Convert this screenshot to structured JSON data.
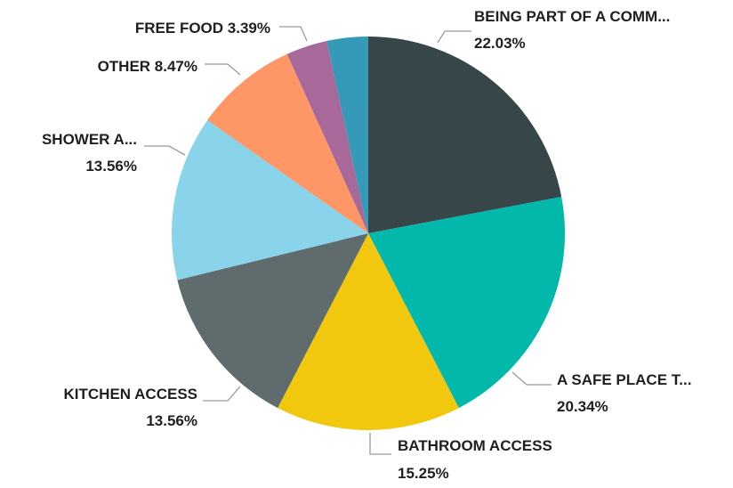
{
  "chart_data": {
    "type": "pie",
    "title": "",
    "start": "top, clockwise",
    "legend": "none",
    "slices": [
      {
        "key": "community",
        "label": "BEING PART OF A COMM...",
        "pct_label": "22.03%",
        "value": 22.03,
        "color": "#374649"
      },
      {
        "key": "safe_place",
        "label": "A SAFE PLACE T...",
        "pct_label": "20.34%",
        "value": 20.34,
        "color": "#01B8AA"
      },
      {
        "key": "bathroom",
        "label": "BATHROOM ACCESS",
        "pct_label": "15.25%",
        "value": 15.25,
        "color": "#F2C80F"
      },
      {
        "key": "kitchen",
        "label": "KITCHEN ACCESS",
        "pct_label": "13.56%",
        "value": 13.56,
        "color": "#5F6B6D"
      },
      {
        "key": "shower",
        "label": "SHOWER A...",
        "pct_label": "13.56%",
        "value": 13.56,
        "color": "#8AD4EB"
      },
      {
        "key": "other",
        "label": "OTHER",
        "pct_label": "8.47%",
        "value": 8.47,
        "color": "#FE9666"
      },
      {
        "key": "free_food",
        "label": "FREE FOOD",
        "pct_label": "3.39%",
        "value": 3.39,
        "color": "#A66999"
      },
      {
        "key": "last",
        "label": "",
        "pct_label": "",
        "value": 3.39,
        "color": "#3599B8"
      }
    ]
  }
}
